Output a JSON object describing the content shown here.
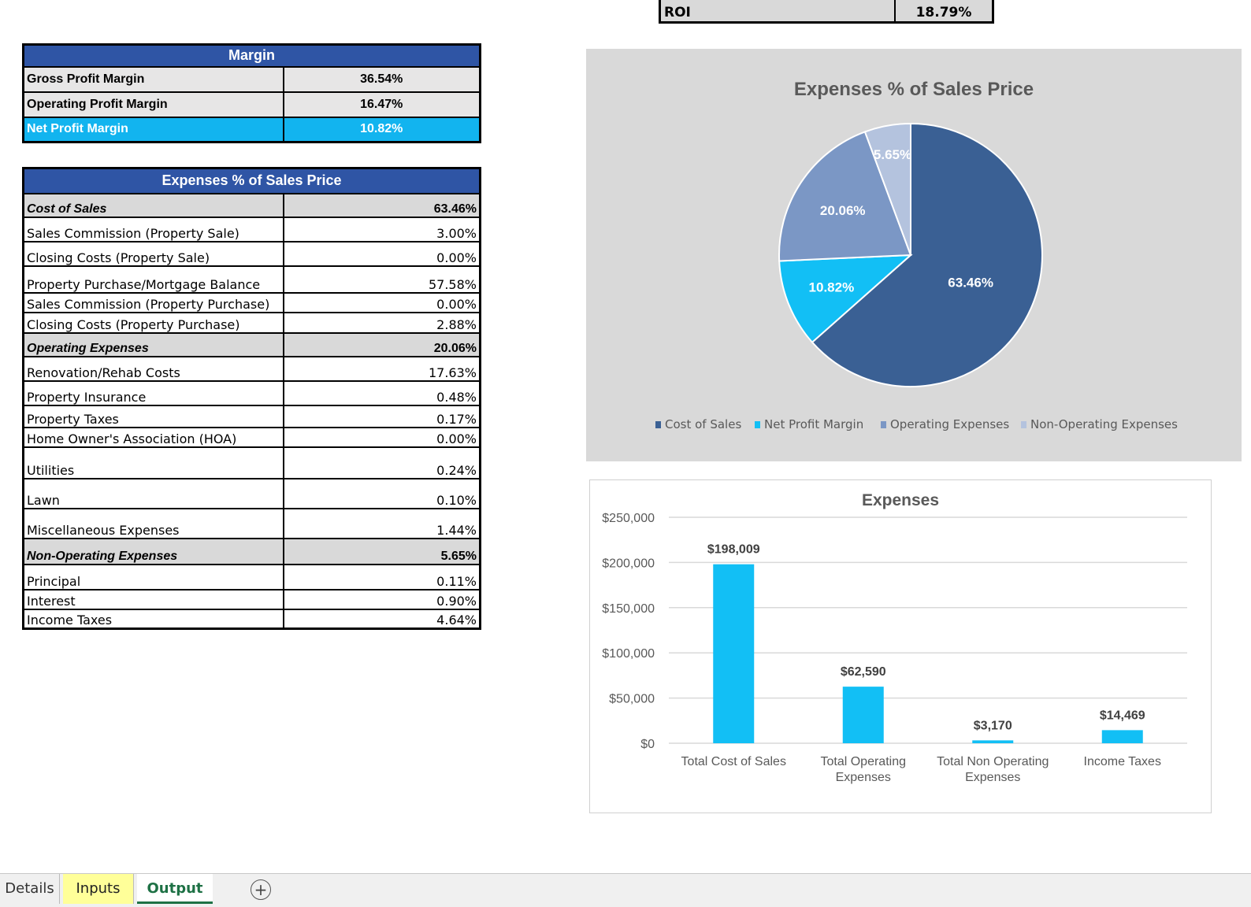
{
  "roi": {
    "label": "ROI",
    "value": "18.79%"
  },
  "margin_table": {
    "title": "Margin",
    "rows": [
      {
        "label": "Gross Profit Margin",
        "value": "36.54%"
      },
      {
        "label": "Operating Profit Margin",
        "value": "16.47%"
      },
      {
        "label": "Net Profit Margin",
        "value": "10.82%"
      }
    ]
  },
  "expenses_table": {
    "title": "Expenses % of Sales Price",
    "rows": [
      {
        "label": "Cost of Sales",
        "value": "63.46%"
      },
      {
        "label": "Sales Commission  (Property Sale)",
        "value": "3.00%"
      },
      {
        "label": "Closing Costs (Property Sale)",
        "value": "0.00%"
      },
      {
        "label": "Property Purchase/Mortgage Balance",
        "value": "57.58%"
      },
      {
        "label": "Sales Commission  (Property Purchase)",
        "value": "0.00%"
      },
      {
        "label": "Closing Costs (Property Purchase)",
        "value": "2.88%"
      },
      {
        "label": "Operating Expenses",
        "value": "20.06%"
      },
      {
        "label": "Renovation/Rehab Costs",
        "value": "17.63%"
      },
      {
        "label": "Property Insurance",
        "value": "0.48%"
      },
      {
        "label": "Property Taxes",
        "value": "0.17%"
      },
      {
        "label": "Home Owner's Association (HOA)",
        "value": "0.00%"
      },
      {
        "label": "Utilities",
        "value": "0.24%"
      },
      {
        "label": "Lawn",
        "value": "0.10%"
      },
      {
        "label": "Miscellaneous Expenses",
        "value": "1.44%"
      },
      {
        "label": "Non-Operating Expenses",
        "value": "5.65%"
      },
      {
        "label": "Principal",
        "value": "0.11%"
      },
      {
        "label": "Interest",
        "value": "0.90%"
      },
      {
        "label": "Income Taxes",
        "value": "4.64%"
      }
    ]
  },
  "chart_data": [
    {
      "type": "pie",
      "title": "Expenses % of Sales Price",
      "slices": [
        {
          "name": "Cost of Sales",
          "value": 63.46,
          "label": "63.46%",
          "color": "#3a6094"
        },
        {
          "name": "Net Profit Margin",
          "value": 10.82,
          "label": "10.82%",
          "color": "#12bff5"
        },
        {
          "name": "Operating Expenses",
          "value": 20.06,
          "label": "20.06%",
          "color": "#7b97c5"
        },
        {
          "name": "Non-Operating Expenses",
          "value": 5.65,
          "label": "5.65%",
          "color": "#b4c3de"
        }
      ],
      "legend": "bottom"
    },
    {
      "type": "bar",
      "title": "Expenses",
      "categories": [
        "Total Cost of Sales",
        "Total Operating Expenses",
        "Total Non Operating Expenses",
        "Income Taxes"
      ],
      "values": [
        198009,
        62590,
        3170,
        14469
      ],
      "data_labels": [
        "$198,009",
        "$62,590",
        "$3,170",
        "$14,469"
      ],
      "ylim": [
        0,
        250000
      ],
      "yticks": [
        "$0",
        "$50,000",
        "$100,000",
        "$150,000",
        "$200,000",
        "$250,000"
      ],
      "color": "#12bff5",
      "grid": true
    }
  ],
  "tabs": [
    {
      "label": "Details"
    },
    {
      "label": "Inputs"
    },
    {
      "label": "Output"
    },
    {
      "label": "+"
    }
  ]
}
